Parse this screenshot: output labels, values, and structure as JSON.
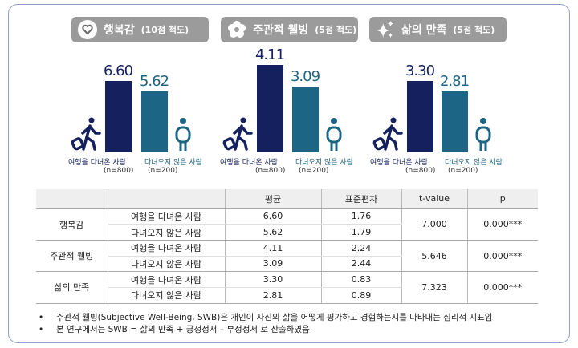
{
  "chart_data": [
    {
      "type": "bar",
      "title": "행복감",
      "scale_label": "(10점 척도)",
      "icon": "heart-icon",
      "categories": [
        "여행을 다녀온 사람",
        "다녀오지 않은 사람"
      ],
      "n_labels": [
        "(n=800)",
        "(n=200)"
      ],
      "values": [
        6.6,
        5.62
      ],
      "value_labels": [
        "6.60",
        "5.62"
      ],
      "colors": [
        "#14215e",
        "#1d6585"
      ]
    },
    {
      "type": "bar",
      "title": "주관적 웰빙",
      "scale_label": "(5점 척도)",
      "icon": "flower-icon",
      "categories": [
        "여행을 다녀온 사람",
        "다녀오지 않은 사람"
      ],
      "n_labels": [
        "(n=800)",
        "(n=200)"
      ],
      "values": [
        4.11,
        3.09
      ],
      "value_labels": [
        "4.11",
        "3.09"
      ],
      "colors": [
        "#14215e",
        "#1d6585"
      ]
    },
    {
      "type": "bar",
      "title": "삶의 만족",
      "scale_label": "(5점 척도)",
      "icon": "sparkle-icon",
      "categories": [
        "여행을 다녀온 사람",
        "다녀오지 않은 사람"
      ],
      "n_labels": [
        "(n=800)",
        "(n=200)"
      ],
      "values": [
        3.3,
        2.81
      ],
      "value_labels": [
        "3.30",
        "2.81"
      ],
      "colors": [
        "#14215e",
        "#1d6585"
      ]
    }
  ],
  "table": {
    "headers": [
      "",
      "",
      "평균",
      "표준편차",
      "t-value",
      "p"
    ],
    "groups": [
      {
        "name": "행복감",
        "t": "7.000",
        "p": "0.000***",
        "rows": [
          [
            "여행을 다녀온 사람",
            "6.60",
            "1.76"
          ],
          [
            "다녀오지 않은 사람",
            "5.62",
            "1.79"
          ]
        ]
      },
      {
        "name": "주관적 웰빙",
        "t": "5.646",
        "p": "0.000***",
        "rows": [
          [
            "여행을 다녀온 사람",
            "4.11",
            "2.24"
          ],
          [
            "다녀오지 않은 사람",
            "3.09",
            "2.44"
          ]
        ]
      },
      {
        "name": "삶의 만족",
        "t": "7.323",
        "p": "0.000***",
        "rows": [
          [
            "여행을 다녀온 사람",
            "3.30",
            "0.83"
          ],
          [
            "다녀오지 않은 사람",
            "2.81",
            "0.89"
          ]
        ]
      }
    ]
  },
  "notes": [
    {
      "bullet": "•",
      "text": "주관적 웰빙(Subjective Well-Being, SWB)은 개인이 자신의 삶을 어떻게 평가하고 경험하는지를 나타내는 심리적 지표임"
    },
    {
      "bullet": "•",
      "text": "본 연구에서는 SWB = 삶의 만족 + 긍정정서 – 부정정서 로 산출하였음"
    }
  ]
}
